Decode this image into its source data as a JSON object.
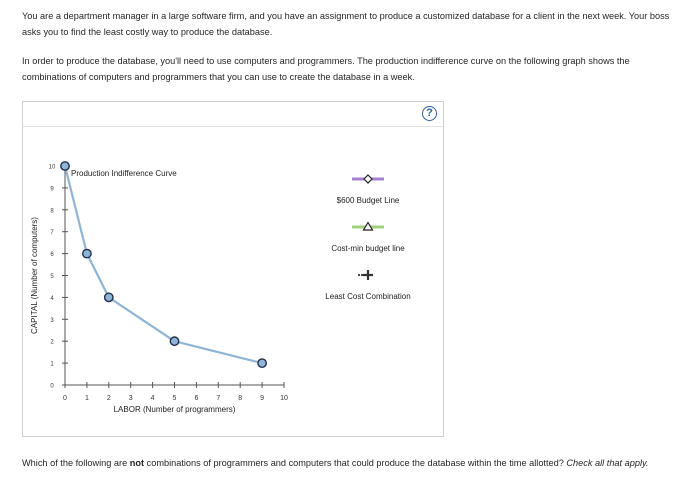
{
  "intro": {
    "p1": "You are a department manager in a large software firm, and you have an assignment to produce a customized database for a client in the next week. Your boss asks you to find the least costly way to produce the database.",
    "p2": "In order to produce the database, you'll need to use computers and programmers. The production indifference curve on the following graph shows the combinations of computers and programmers that you can use to create the database in a week."
  },
  "panel": {
    "help_icon": "?"
  },
  "chart_data": {
    "type": "line",
    "xlabel": "LABOR (Number of programmers)",
    "ylabel": "CAPITAL (Number of computers)",
    "xlim": [
      0,
      10
    ],
    "ylim": [
      0,
      10
    ],
    "xticks": [
      "0",
      "1",
      "2",
      "3",
      "4",
      "5",
      "6",
      "7",
      "8",
      "9",
      "10"
    ],
    "yticks": [
      "0",
      "1",
      "2",
      "3",
      "4",
      "5",
      "6",
      "7",
      "8",
      "9",
      "10"
    ],
    "series": [
      {
        "name": "Production Indifference Curve",
        "x": [
          0,
          1,
          2,
          5,
          9
        ],
        "y": [
          10,
          6,
          4,
          2,
          1
        ],
        "color": "#8fb4d6"
      }
    ]
  },
  "tools": [
    {
      "label": "$600 Budget Line",
      "color": "#a77fd0",
      "marker": "diamond-icon"
    },
    {
      "label": "Cost-min budget line",
      "color": "#9fd17f",
      "marker": "triangle-icon"
    },
    {
      "label": "Least Cost Combination",
      "color": "#333333",
      "marker": "plus-icon"
    }
  ],
  "question": {
    "pre": "Which of the following are ",
    "bold": "not",
    "mid": " combinations of programmers and computers that could produce the database within the time allotted? ",
    "italic": "Check all that apply."
  }
}
